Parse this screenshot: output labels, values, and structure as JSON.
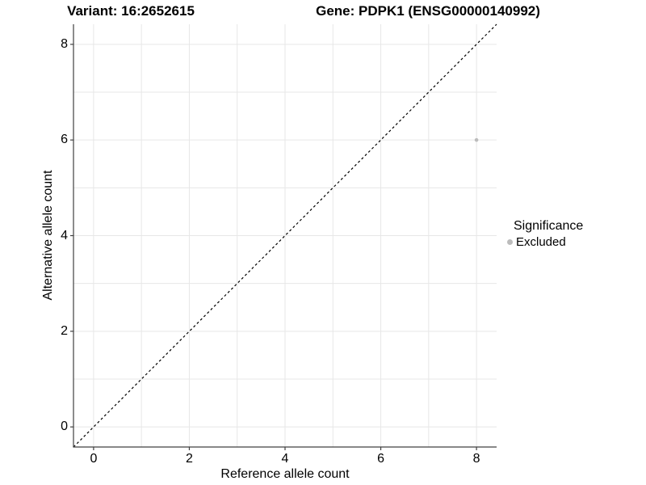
{
  "chart_data": {
    "type": "scatter",
    "title_left": "Variant: 16:2652615",
    "title_right": "Gene: PDPK1 (ENSG00000140992)",
    "xlabel": "Reference allele count",
    "ylabel": "Alternative allele count",
    "xlim": [
      -0.42,
      8.42
    ],
    "ylim": [
      -0.42,
      8.42
    ],
    "x_ticks": [
      0,
      2,
      4,
      6,
      8
    ],
    "y_ticks": [
      0,
      2,
      4,
      6,
      8
    ],
    "gridline_step": 1,
    "grid": true,
    "identity_line": {
      "style": "dashed",
      "equation": "y = x"
    },
    "series": [
      {
        "name": "Excluded",
        "color": "#bcbcbc",
        "points": [
          {
            "x": 8,
            "y": 6
          }
        ]
      }
    ],
    "legend": {
      "title": "Significance",
      "position": "right",
      "entries": [
        {
          "label": "Excluded",
          "color": "#bcbcbc"
        }
      ]
    },
    "colors": {
      "background": "#ffffff",
      "gridline": "#e7e7e7",
      "axis_line": "#404040",
      "identity_line": "#000000",
      "text": "#000000"
    }
  }
}
